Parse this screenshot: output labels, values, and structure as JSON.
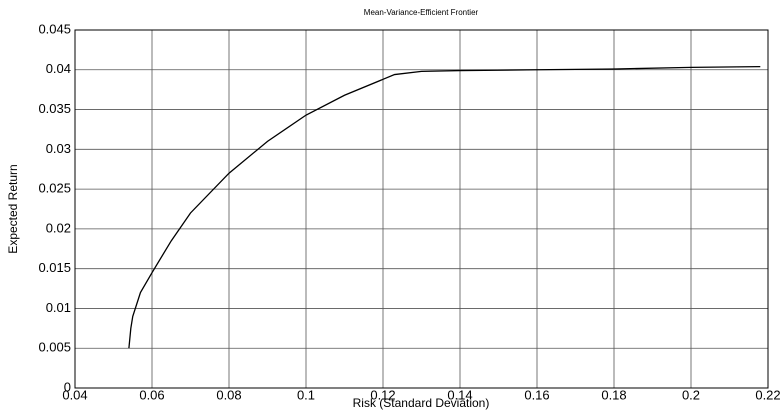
{
  "chart_data": {
    "type": "line",
    "title": "Mean-Variance-Efficient Frontier",
    "x_label": "Risk (Standard Deviation)",
    "y_label": "Expected Return",
    "xlim": [
      0.04,
      0.22
    ],
    "ylim": [
      0,
      0.045
    ],
    "xticks": [
      0.04,
      0.06,
      0.08,
      0.1,
      0.12,
      0.14,
      0.16,
      0.18,
      0.2,
      0.22
    ],
    "yticks": [
      0,
      0.005,
      0.01,
      0.015,
      0.02,
      0.025,
      0.03,
      0.035,
      0.04,
      0.045
    ],
    "grid": true,
    "series": [
      {
        "color": "#000000",
        "x": [
          0.054,
          0.0545,
          0.055,
          0.057,
          0.06,
          0.065,
          0.07,
          0.08,
          0.09,
          0.1,
          0.11,
          0.12,
          0.123,
          0.13,
          0.14,
          0.16,
          0.18,
          0.2,
          0.218
        ],
        "values": [
          0.005,
          0.0075,
          0.009,
          0.012,
          0.0145,
          0.0185,
          0.022,
          0.027,
          0.031,
          0.0343,
          0.0368,
          0.0388,
          0.0394,
          0.0398,
          0.0399,
          0.04,
          0.0401,
          0.0403,
          0.0404
        ]
      }
    ]
  }
}
